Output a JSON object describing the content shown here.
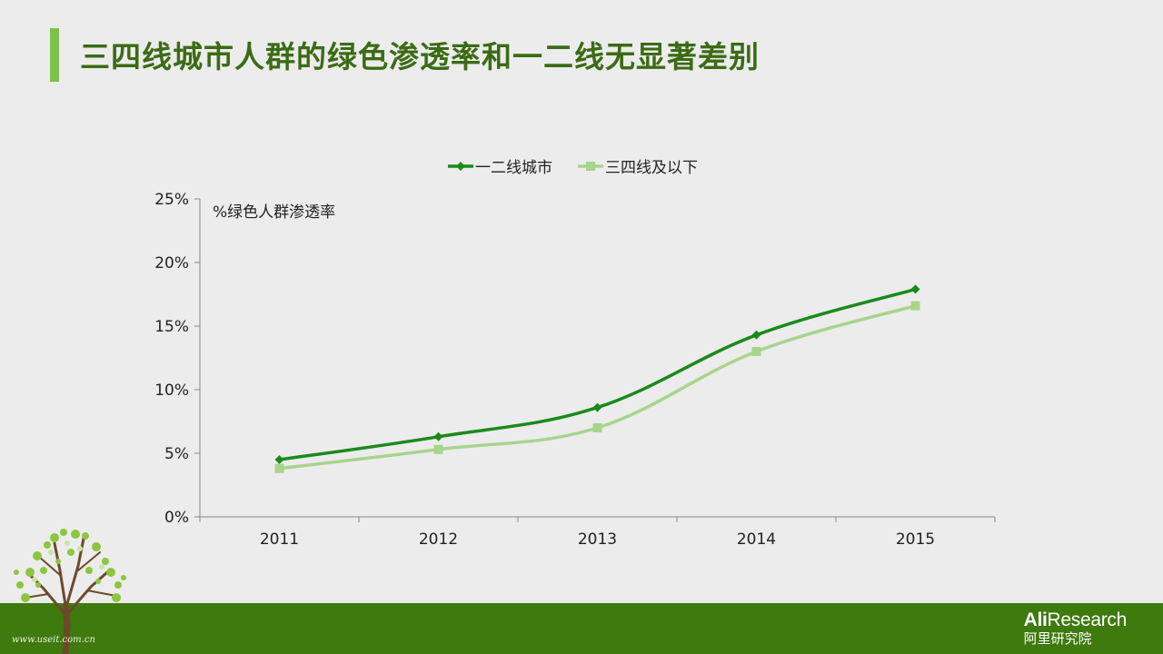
{
  "slide": {
    "title": "三四线城市人群的绿色渗透率和一二线无显著差别",
    "watermark": "www.useit.com.cn",
    "logo": {
      "brand_bold": "Ali",
      "brand_rest": "Research",
      "subtitle": "阿里研究院"
    }
  },
  "colors": {
    "series_1": "#1a8a1a",
    "series_2": "#a8d48c",
    "accent": "#7dc24a",
    "title": "#3b6b14",
    "footer": "#3e7a0e"
  },
  "chart_data": {
    "type": "line",
    "title": "",
    "annotation": "%绿色人群渗透率",
    "categories": [
      "2011",
      "2012",
      "2013",
      "2014",
      "2015"
    ],
    "y_ticks": [
      "0%",
      "5%",
      "10%",
      "15%",
      "20%",
      "25%"
    ],
    "ylim": [
      0,
      25
    ],
    "xlabel": "",
    "ylabel": "",
    "grid": false,
    "legend_position": "top",
    "series": [
      {
        "name": "一二线城市",
        "values": [
          4.5,
          6.3,
          8.6,
          14.3,
          17.9
        ],
        "marker": "diamond"
      },
      {
        "name": "三四线及以下",
        "values": [
          3.8,
          5.3,
          7.0,
          13.0,
          16.6
        ],
        "marker": "square"
      }
    ]
  }
}
